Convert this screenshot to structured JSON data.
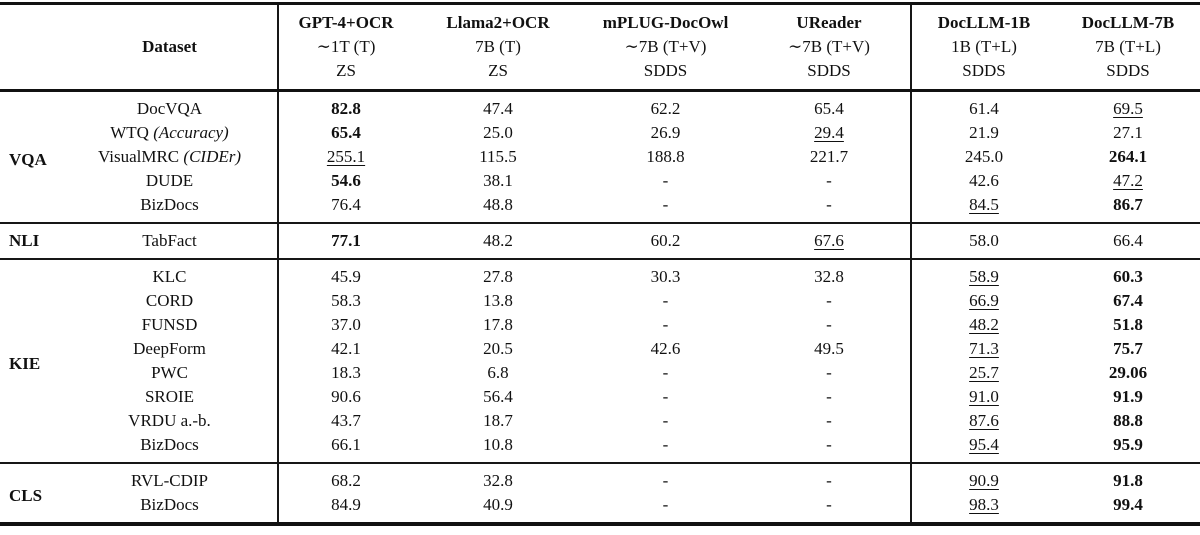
{
  "table": {
    "header": {
      "dataset_label": "Dataset",
      "columns": [
        {
          "model": "GPT-4+OCR",
          "size": "∼1T (T)",
          "setting": "ZS"
        },
        {
          "model": "Llama2+OCR",
          "size": "7B (T)",
          "setting": "ZS"
        },
        {
          "model": "mPLUG-DocOwl",
          "size": "∼7B (T+V)",
          "setting": "SDDS"
        },
        {
          "model": "UReader",
          "size": "∼7B (T+V)",
          "setting": "SDDS"
        },
        {
          "model": "DocLLM-1B",
          "size": "1B (T+L)",
          "setting": "SDDS"
        },
        {
          "model": "DocLLM-7B",
          "size": "7B (T+L)",
          "setting": "SDDS"
        }
      ]
    },
    "sections": [
      {
        "category": "VQA",
        "rows": [
          {
            "dataset": "DocVQA",
            "metric": "",
            "values": [
              {
                "v": "82.8",
                "s": "b"
              },
              {
                "v": "47.4",
                "s": ""
              },
              {
                "v": "62.2",
                "s": ""
              },
              {
                "v": "65.4",
                "s": ""
              },
              {
                "v": "61.4",
                "s": ""
              },
              {
                "v": "69.5",
                "s": "u"
              }
            ]
          },
          {
            "dataset": "WTQ",
            "metric": "(Accuracy)",
            "values": [
              {
                "v": "65.4",
                "s": "b"
              },
              {
                "v": "25.0",
                "s": ""
              },
              {
                "v": "26.9",
                "s": ""
              },
              {
                "v": "29.4",
                "s": "u"
              },
              {
                "v": "21.9",
                "s": ""
              },
              {
                "v": "27.1",
                "s": ""
              }
            ]
          },
          {
            "dataset": "VisualMRC",
            "metric": "(CIDEr)",
            "values": [
              {
                "v": "255.1",
                "s": "u"
              },
              {
                "v": "115.5",
                "s": ""
              },
              {
                "v": "188.8",
                "s": ""
              },
              {
                "v": "221.7",
                "s": ""
              },
              {
                "v": "245.0",
                "s": ""
              },
              {
                "v": "264.1",
                "s": "b"
              }
            ]
          },
          {
            "dataset": "DUDE",
            "metric": "",
            "values": [
              {
                "v": "54.6",
                "s": "b"
              },
              {
                "v": "38.1",
                "s": ""
              },
              {
                "v": "-",
                "s": ""
              },
              {
                "v": "-",
                "s": ""
              },
              {
                "v": "42.6",
                "s": ""
              },
              {
                "v": "47.2",
                "s": "u"
              }
            ]
          },
          {
            "dataset": "BizDocs",
            "metric": "",
            "values": [
              {
                "v": "76.4",
                "s": ""
              },
              {
                "v": "48.8",
                "s": ""
              },
              {
                "v": "-",
                "s": ""
              },
              {
                "v": "-",
                "s": ""
              },
              {
                "v": "84.5",
                "s": "u"
              },
              {
                "v": "86.7",
                "s": "b"
              }
            ]
          }
        ]
      },
      {
        "category": "NLI",
        "rows": [
          {
            "dataset": "TabFact",
            "metric": "",
            "values": [
              {
                "v": "77.1",
                "s": "b"
              },
              {
                "v": "48.2",
                "s": ""
              },
              {
                "v": "60.2",
                "s": ""
              },
              {
                "v": "67.6",
                "s": "u"
              },
              {
                "v": "58.0",
                "s": ""
              },
              {
                "v": "66.4",
                "s": ""
              }
            ]
          }
        ]
      },
      {
        "category": "KIE",
        "rows": [
          {
            "dataset": "KLC",
            "metric": "",
            "values": [
              {
                "v": "45.9",
                "s": ""
              },
              {
                "v": "27.8",
                "s": ""
              },
              {
                "v": "30.3",
                "s": ""
              },
              {
                "v": "32.8",
                "s": ""
              },
              {
                "v": "58.9",
                "s": "u"
              },
              {
                "v": "60.3",
                "s": "b"
              }
            ]
          },
          {
            "dataset": "CORD",
            "metric": "",
            "values": [
              {
                "v": "58.3",
                "s": ""
              },
              {
                "v": "13.8",
                "s": ""
              },
              {
                "v": "-",
                "s": ""
              },
              {
                "v": "-",
                "s": ""
              },
              {
                "v": "66.9",
                "s": "u"
              },
              {
                "v": "67.4",
                "s": "b"
              }
            ]
          },
          {
            "dataset": "FUNSD",
            "metric": "",
            "values": [
              {
                "v": "37.0",
                "s": ""
              },
              {
                "v": "17.8",
                "s": ""
              },
              {
                "v": "-",
                "s": ""
              },
              {
                "v": "-",
                "s": ""
              },
              {
                "v": "48.2",
                "s": "u"
              },
              {
                "v": "51.8",
                "s": "b"
              }
            ]
          },
          {
            "dataset": "DeepForm",
            "metric": "",
            "values": [
              {
                "v": "42.1",
                "s": ""
              },
              {
                "v": "20.5",
                "s": ""
              },
              {
                "v": "42.6",
                "s": ""
              },
              {
                "v": "49.5",
                "s": ""
              },
              {
                "v": "71.3",
                "s": "u"
              },
              {
                "v": "75.7",
                "s": "b"
              }
            ]
          },
          {
            "dataset": "PWC",
            "metric": "",
            "values": [
              {
                "v": "18.3",
                "s": ""
              },
              {
                "v": "6.8",
                "s": ""
              },
              {
                "v": "-",
                "s": ""
              },
              {
                "v": "-",
                "s": ""
              },
              {
                "v": "25.7",
                "s": "u"
              },
              {
                "v": "29.06",
                "s": "b"
              }
            ]
          },
          {
            "dataset": "SROIE",
            "metric": "",
            "values": [
              {
                "v": "90.6",
                "s": ""
              },
              {
                "v": "56.4",
                "s": ""
              },
              {
                "v": "-",
                "s": ""
              },
              {
                "v": "-",
                "s": ""
              },
              {
                "v": "91.0",
                "s": "u"
              },
              {
                "v": "91.9",
                "s": "b"
              }
            ]
          },
          {
            "dataset": "VRDU a.-b.",
            "metric": "",
            "values": [
              {
                "v": "43.7",
                "s": ""
              },
              {
                "v": "18.7",
                "s": ""
              },
              {
                "v": "-",
                "s": ""
              },
              {
                "v": "-",
                "s": ""
              },
              {
                "v": "87.6",
                "s": "u"
              },
              {
                "v": "88.8",
                "s": "b"
              }
            ]
          },
          {
            "dataset": "BizDocs",
            "metric": "",
            "values": [
              {
                "v": "66.1",
                "s": ""
              },
              {
                "v": "10.8",
                "s": ""
              },
              {
                "v": "-",
                "s": ""
              },
              {
                "v": "-",
                "s": ""
              },
              {
                "v": "95.4",
                "s": "u"
              },
              {
                "v": "95.9",
                "s": "b"
              }
            ]
          }
        ]
      },
      {
        "category": "CLS",
        "rows": [
          {
            "dataset": "RVL-CDIP",
            "metric": "",
            "values": [
              {
                "v": "68.2",
                "s": ""
              },
              {
                "v": "32.8",
                "s": ""
              },
              {
                "v": "-",
                "s": ""
              },
              {
                "v": "-",
                "s": ""
              },
              {
                "v": "90.9",
                "s": "u"
              },
              {
                "v": "91.8",
                "s": "b"
              }
            ]
          },
          {
            "dataset": "BizDocs",
            "metric": "",
            "values": [
              {
                "v": "84.9",
                "s": ""
              },
              {
                "v": "40.9",
                "s": ""
              },
              {
                "v": "-",
                "s": ""
              },
              {
                "v": "-",
                "s": ""
              },
              {
                "v": "98.3",
                "s": "u"
              },
              {
                "v": "99.4",
                "s": "b"
              }
            ]
          }
        ]
      }
    ]
  }
}
